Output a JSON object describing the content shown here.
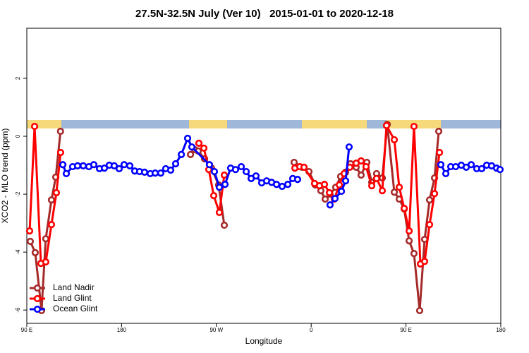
{
  "chart_data": {
    "type": "line",
    "title": "27.5N-32.5N July (Ver 10)   2015-01-01 to 2020-12-18",
    "x_label": "Longitude",
    "y_label": "XCO2 - MLO trend (ppm)",
    "xlim": [
      90,
      540
    ],
    "ylim": [
      -6.46,
      3.73
    ],
    "xticks": [
      {
        "value": 90,
        "label": "90 E"
      },
      180,
      {
        "value": 270,
        "label": "90 W"
      },
      {
        "value": 360,
        "label": "0"
      },
      {
        "value": 450,
        "label": "90 E"
      },
      {
        "value": 540,
        "label": "180"
      }
    ],
    "yticks": [
      -6,
      -4,
      -2,
      0,
      2
    ],
    "legend": "bottom-left",
    "series": [
      {
        "name": "Land Nadir",
        "color": "#a52a2a",
        "x": [
          93.3,
          98,
          104,
          108,
          113.4,
          117.5,
          122,
          null,
          245.4,
          249.4,
          252.7,
          258.8,
          265.4,
          272.1,
          277.5,
          null,
          343.8,
          351.2,
          357.9,
          363.9,
          369.2,
          373.3,
          377.9,
          383.3,
          388,
          392.7,
          397.4,
          402.7,
          407.4,
          412.8,
          417.5,
          422.1,
          427.5,
          432.2,
          438.9,
          443.6,
          448.3,
          453,
          457.6,
          463,
          467.7,
          472.4,
          477.1,
          481.1
        ],
        "values": [
          -3.63,
          -4.02,
          -6.02,
          -3.54,
          -2.2,
          -1.41,
          0.17,
          null,
          -0.63,
          -0.46,
          -0.51,
          -0.78,
          -1.1,
          -1.68,
          -3.07,
          null,
          -0.9,
          -1.07,
          -1.22,
          -1.68,
          -1.88,
          -2.17,
          -2.0,
          -1.76,
          -1.39,
          -1.24,
          -0.95,
          -1.07,
          -1.34,
          -0.9,
          -1.59,
          -1.29,
          -1.44,
          0.41,
          -1.93,
          -2.17,
          -2.51,
          -3.61,
          -4.05,
          -6.02,
          -3.56,
          -2.2,
          -1.44,
          0.17
        ]
      },
      {
        "name": "Land Glint",
        "color": "#ff0000",
        "x": [
          92.7,
          97.4,
          103.4,
          108,
          113.4,
          118.1,
          122.1,
          null,
          253.4,
          258.1,
          262.8,
          267.5,
          272.8,
          277.5,
          null,
          344.5,
          349.2,
          353.2,
          363.2,
          367.9,
          372.6,
          377.3,
          382,
          386.7,
          391.3,
          396.7,
          402.7,
          407.4,
          412.1,
          417.5,
          422.1,
          427.5,
          431.5,
          438.9,
          443.6,
          448.3,
          453,
          457.6,
          463.7,
          467.7,
          472.4,
          477.1,
          481.8
        ],
        "values": [
          -3.27,
          0.34,
          -4.39,
          -4.34,
          -3.05,
          -1.95,
          -0.56,
          null,
          -0.24,
          -0.41,
          -1.15,
          -2.05,
          -2.63,
          -1.34,
          null,
          -1.1,
          -1.05,
          -1.07,
          -1.63,
          -1.71,
          -1.66,
          -1.95,
          -2.17,
          -1.68,
          -1.29,
          -1.07,
          -0.93,
          -0.85,
          -1.05,
          -1.71,
          -1.46,
          -1.88,
          0.37,
          -0.12,
          -1.76,
          -2.49,
          -3.27,
          0.34,
          -4.41,
          -4.32,
          -3.05,
          -1.98,
          -0.56
        ]
      },
      {
        "name": "Ocean Glint",
        "color": "#0000ff",
        "x": [
          124.2,
          127.5,
          133.5,
          138.2,
          143.6,
          148.9,
          153.6,
          159,
          163.7,
          168.3,
          173,
          177.7,
          182.4,
          187.8,
          192.5,
          197.1,
          201.8,
          207.2,
          211.9,
          217.2,
          221.9,
          226.6,
          231.3,
          236.7,
          242.7,
          246.7,
          263.4,
          268.1,
          272.8,
          278.2,
          283.5,
          288.2,
          293.6,
          298.3,
          303,
          307.6,
          313,
          317.7,
          322.4,
          327.1,
          332.4,
          337.8,
          342.5,
          347.1,
          null,
          377.9,
          382.6,
          388.7,
          392.7,
          396,
          null,
          483.1,
          487.8,
          492.5,
          497.2,
          502.5,
          507.2,
          511.9,
          517.2,
          521.9,
          526.6,
          531.3,
          536,
          539.3
        ],
        "values": [
          -0.98,
          -1.29,
          -1.05,
          -1.02,
          -1.02,
          -1.05,
          -0.98,
          -1.12,
          -1.1,
          -1.0,
          -1.02,
          -1.12,
          -0.98,
          -1.02,
          -1.2,
          -1.22,
          -1.24,
          -1.29,
          -1.27,
          -1.27,
          -1.12,
          -1.17,
          -0.95,
          -0.63,
          -0.07,
          -0.37,
          -0.98,
          -1.22,
          -1.76,
          -1.66,
          -1.1,
          -1.15,
          -1.05,
          -1.22,
          -1.46,
          -1.37,
          -1.61,
          -1.54,
          -1.59,
          -1.66,
          -1.73,
          -1.66,
          -1.46,
          -1.49,
          null,
          -2.37,
          -2.15,
          -1.9,
          -1.54,
          -0.37,
          null,
          -0.98,
          -1.29,
          -1.05,
          -1.05,
          -1.0,
          -1.07,
          -0.98,
          -1.12,
          -1.12,
          -1.0,
          -1.02,
          -1.1,
          -1.15
        ]
      }
    ]
  }
}
